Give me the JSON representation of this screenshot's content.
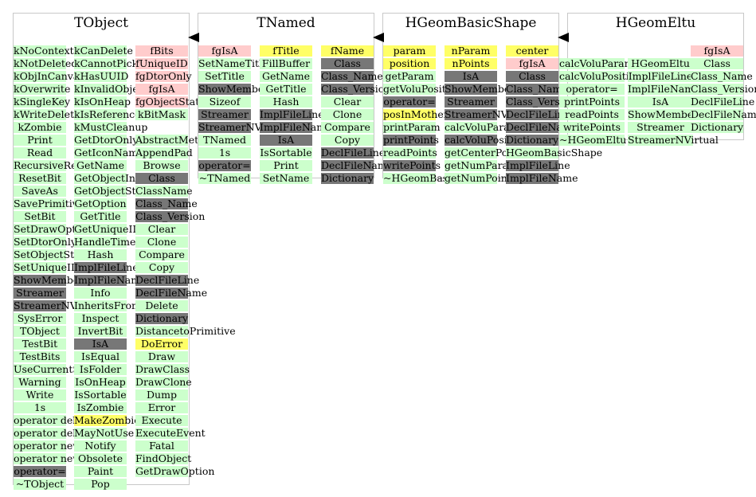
{
  "classes": [
    {
      "name": "TObject",
      "columns": [
        [
          [
            "kNoContextMenu",
            "g"
          ],
          [
            "kNotDeleted",
            "g"
          ],
          [
            "kObjInCanvas",
            "g"
          ],
          [
            "kOverwrite",
            "g"
          ],
          [
            "kSingleKey",
            "g"
          ],
          [
            "kWriteDelete",
            "g"
          ],
          [
            "kZombie",
            "g"
          ],
          [
            "Print",
            "g"
          ],
          [
            "Read",
            "g"
          ],
          [
            "RecursiveRemove",
            "g"
          ],
          [
            "ResetBit",
            "g"
          ],
          [
            "SaveAs",
            "g"
          ],
          [
            "SavePrimitive",
            "g"
          ],
          [
            "SetBit",
            "g"
          ],
          [
            "SetDrawOption",
            "g"
          ],
          [
            "SetDtorOnly",
            "g"
          ],
          [
            "SetObjectStat",
            "g"
          ],
          [
            "SetUniqueID",
            "g"
          ],
          [
            "ShowMembers",
            "x"
          ],
          [
            "Streamer",
            "x"
          ],
          [
            "StreamerNVirtual",
            "x"
          ],
          [
            "SysError",
            "g"
          ],
          [
            "TObject",
            "g"
          ],
          [
            "TestBit",
            "g"
          ],
          [
            "TestBits",
            "g"
          ],
          [
            "UseCurrentStyle",
            "g"
          ],
          [
            "Warning",
            "g"
          ],
          [
            "Write",
            "g"
          ],
          [
            "1s",
            "g"
          ],
          [
            "operator delete",
            "g"
          ],
          [
            "operator delete[]",
            "g"
          ],
          [
            "operator new",
            "g"
          ],
          [
            "operator new[]",
            "g"
          ],
          [
            "operator=",
            "x"
          ],
          [
            "~TObject",
            "g"
          ]
        ],
        [
          [
            "kCanDelete",
            "g"
          ],
          [
            "kCannotPick",
            "g"
          ],
          [
            "kHasUUID",
            "g"
          ],
          [
            "kInvalidObject",
            "g"
          ],
          [
            "kIsOnHeap",
            "g"
          ],
          [
            "kIsReferenced",
            "g"
          ],
          [
            "kMustCleanup",
            "g"
          ],
          [
            "GetDtorOnly",
            "g"
          ],
          [
            "GetIconName",
            "g"
          ],
          [
            "GetName",
            "g"
          ],
          [
            "GetObjectInfo",
            "g"
          ],
          [
            "GetObjectStat",
            "g"
          ],
          [
            "GetOption",
            "g"
          ],
          [
            "GetTitle",
            "g"
          ],
          [
            "GetUniqueID",
            "g"
          ],
          [
            "HandleTimer",
            "g"
          ],
          [
            "Hash",
            "g"
          ],
          [
            "ImplFileLine",
            "x"
          ],
          [
            "ImplFileName",
            "x"
          ],
          [
            "Info",
            "g"
          ],
          [
            "InheritsFrom",
            "g"
          ],
          [
            "Inspect",
            "g"
          ],
          [
            "InvertBit",
            "g"
          ],
          [
            "IsA",
            "x"
          ],
          [
            "IsEqual",
            "g"
          ],
          [
            "IsFolder",
            "g"
          ],
          [
            "IsOnHeap",
            "g"
          ],
          [
            "IsSortable",
            "g"
          ],
          [
            "IsZombie",
            "g"
          ],
          [
            "MakeZombie",
            "y"
          ],
          [
            "MayNotUse",
            "g"
          ],
          [
            "Notify",
            "g"
          ],
          [
            "Obsolete",
            "g"
          ],
          [
            "Paint",
            "g"
          ],
          [
            "Pop",
            "g"
          ]
        ],
        [
          [
            "fBits",
            "p"
          ],
          [
            "fUniqueID",
            "p"
          ],
          [
            "fgDtorOnly",
            "p"
          ],
          [
            "fgIsA",
            "p"
          ],
          [
            "fgObjectStat",
            "p"
          ],
          [
            "kBitMask",
            "g"
          ],
          [
            "",
            ""
          ],
          [
            "AbstractMethod",
            "g"
          ],
          [
            "AppendPad",
            "g"
          ],
          [
            "Browse",
            "g"
          ],
          [
            "Class",
            "x"
          ],
          [
            "ClassName",
            "g"
          ],
          [
            "Class_Name",
            "x"
          ],
          [
            "Class_Version",
            "x"
          ],
          [
            "Clear",
            "g"
          ],
          [
            "Clone",
            "g"
          ],
          [
            "Compare",
            "g"
          ],
          [
            "Copy",
            "g"
          ],
          [
            "DeclFileLine",
            "x"
          ],
          [
            "DeclFileName",
            "x"
          ],
          [
            "Delete",
            "g"
          ],
          [
            "Dictionary",
            "x"
          ],
          [
            "DistancetoPrimitive",
            "g"
          ],
          [
            "DoError",
            "y"
          ],
          [
            "Draw",
            "g"
          ],
          [
            "DrawClass",
            "g"
          ],
          [
            "DrawClone",
            "g"
          ],
          [
            "Dump",
            "g"
          ],
          [
            "Error",
            "g"
          ],
          [
            "Execute",
            "g"
          ],
          [
            "ExecuteEvent",
            "g"
          ],
          [
            "Fatal",
            "g"
          ],
          [
            "FindObject",
            "g"
          ],
          [
            "GetDrawOption",
            "g"
          ]
        ]
      ]
    },
    {
      "name": "TNamed",
      "columns": [
        [
          [
            "fgIsA",
            "p"
          ],
          [
            "SetNameTitle",
            "g"
          ],
          [
            "SetTitle",
            "g"
          ],
          [
            "ShowMembers",
            "x"
          ],
          [
            "Sizeof",
            "g"
          ],
          [
            "Streamer",
            "x"
          ],
          [
            "StreamerNVirtual",
            "x"
          ],
          [
            "TNamed",
            "g"
          ],
          [
            "1s",
            "g"
          ],
          [
            "operator=",
            "x"
          ],
          [
            "~TNamed",
            "g"
          ]
        ],
        [
          [
            "fTitle",
            "y"
          ],
          [
            "FillBuffer",
            "g"
          ],
          [
            "GetName",
            "g"
          ],
          [
            "GetTitle",
            "g"
          ],
          [
            "Hash",
            "g"
          ],
          [
            "ImplFileLine",
            "x"
          ],
          [
            "ImplFileName",
            "x"
          ],
          [
            "IsA",
            "x"
          ],
          [
            "IsSortable",
            "g"
          ],
          [
            "Print",
            "g"
          ],
          [
            "SetName",
            "g"
          ]
        ],
        [
          [
            "fName",
            "y"
          ],
          [
            "Class",
            "x"
          ],
          [
            "Class_Name",
            "x"
          ],
          [
            "Class_Version",
            "x"
          ],
          [
            "Clear",
            "g"
          ],
          [
            "Clone",
            "g"
          ],
          [
            "Compare",
            "g"
          ],
          [
            "Copy",
            "g"
          ],
          [
            "DeclFileLine",
            "x"
          ],
          [
            "DeclFileName",
            "x"
          ],
          [
            "Dictionary",
            "x"
          ]
        ]
      ]
    },
    {
      "name": "HGeomBasicShape",
      "columns": [
        [
          [
            "param",
            "y"
          ],
          [
            "position",
            "y"
          ],
          [
            "getParam",
            "g"
          ],
          [
            "getVoluPosition",
            "g"
          ],
          [
            "operator=",
            "x"
          ],
          [
            "posInMother",
            "y"
          ],
          [
            "printParam",
            "g"
          ],
          [
            "printPoints",
            "x"
          ],
          [
            "readPoints",
            "g"
          ],
          [
            "writePoints",
            "x"
          ],
          [
            "~HGeomBasicShape",
            "g"
          ]
        ],
        [
          [
            "nParam",
            "y"
          ],
          [
            "nPoints",
            "y"
          ],
          [
            "IsA",
            "x"
          ],
          [
            "ShowMembers",
            "x"
          ],
          [
            "Streamer",
            "x"
          ],
          [
            "StreamerNVirtual",
            "x"
          ],
          [
            "calcVoluParam",
            "g"
          ],
          [
            "calcVoluPosition",
            "x"
          ],
          [
            "getCenterPosition",
            "g"
          ],
          [
            "getNumParam",
            "g"
          ],
          [
            "getNumPoints",
            "g"
          ]
        ],
        [
          [
            "center",
            "y"
          ],
          [
            "fgIsA",
            "p"
          ],
          [
            "Class",
            "x"
          ],
          [
            "Class_Name",
            "x"
          ],
          [
            "Class_Version",
            "x"
          ],
          [
            "DeclFileLine",
            "x"
          ],
          [
            "DeclFileName",
            "x"
          ],
          [
            "Dictionary",
            "x"
          ],
          [
            "HGeomBasicShape",
            "g"
          ],
          [
            "ImplFileLine",
            "x"
          ],
          [
            "ImplFileName",
            "x"
          ]
        ]
      ]
    },
    {
      "name": "HGeomEltu",
      "columns": [
        [
          [
            "calcVoluParam",
            "g"
          ],
          [
            "calcVoluPosition",
            "g"
          ],
          [
            "operator=",
            "g"
          ],
          [
            "printPoints",
            "g"
          ],
          [
            "readPoints",
            "g"
          ],
          [
            "writePoints",
            "g"
          ],
          [
            "~HGeomEltu",
            "g"
          ]
        ],
        [
          [
            "HGeomEltu",
            "g"
          ],
          [
            "ImplFileLine",
            "g"
          ],
          [
            "ImplFileName",
            "g"
          ],
          [
            "IsA",
            "g"
          ],
          [
            "ShowMembers",
            "g"
          ],
          [
            "Streamer",
            "g"
          ],
          [
            "StreamerNVirtual",
            "g"
          ]
        ],
        [
          [
            "fgIsA",
            "p"
          ],
          [
            "Class",
            "g"
          ],
          [
            "Class_Name",
            "g"
          ],
          [
            "Class_Version",
            "g"
          ],
          [
            "DeclFileLine",
            "g"
          ],
          [
            "DeclFileName",
            "g"
          ],
          [
            "Dictionary",
            "g"
          ]
        ]
      ]
    }
  ],
  "colors": {
    "g": "#ccffcc",
    "p": "#ffcccc",
    "y": "#ffff66",
    "x": "#777777"
  }
}
